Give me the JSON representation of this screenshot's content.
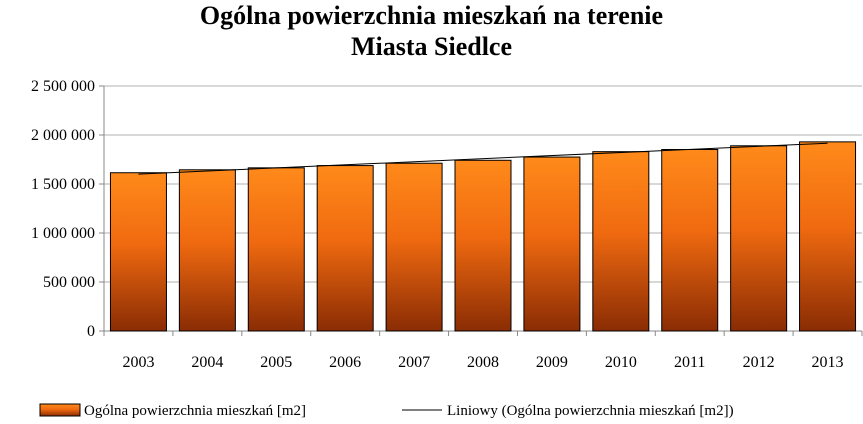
{
  "chart_data": {
    "type": "bar",
    "title_lines": [
      "Ogólna powierzchnia mieszkań na terenie",
      "Miasta Siedlce"
    ],
    "categories": [
      "2003",
      "2004",
      "2005",
      "2006",
      "2007",
      "2008",
      "2009",
      "2010",
      "2011",
      "2012",
      "2013"
    ],
    "series": [
      {
        "name": "Ogólna powierzchnia mieszkań [m2]",
        "values": [
          1615000,
          1645000,
          1665000,
          1688000,
          1712000,
          1742000,
          1775000,
          1830000,
          1852000,
          1890000,
          1930000
        ]
      }
    ],
    "trendline": {
      "type": "linear",
      "name": "Liniowy (Ogólna powierzchnia mieszkań [m2])"
    },
    "ylim": [
      0,
      2500000
    ],
    "y_ticks": [
      0,
      500000,
      1000000,
      1500000,
      2000000,
      2500000
    ],
    "y_tick_labels": [
      "0",
      "500 000",
      "1 000 000",
      "1 500 000",
      "2 000 000",
      "2 500 000"
    ],
    "grid": true,
    "legend_position": "bottom",
    "colors": {
      "bar_top": "#ff8a1a",
      "bar_bottom": "#8a2c04",
      "bar_border": "#000000",
      "grid": "#b0b0b0",
      "trend": "#000000"
    }
  }
}
